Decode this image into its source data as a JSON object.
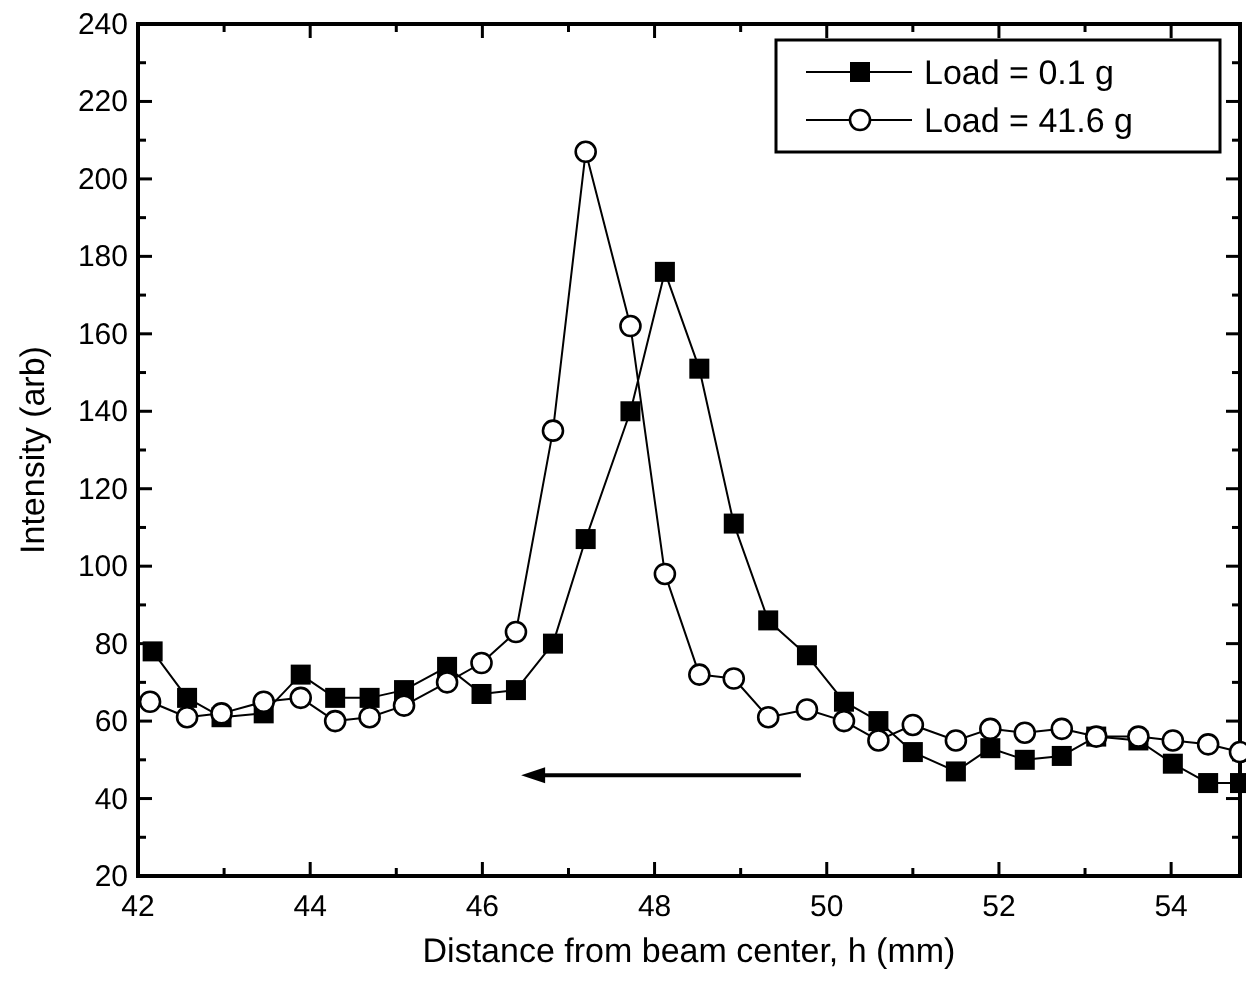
{
  "chart_data": {
    "type": "line",
    "xlabel": "Distance from beam center, h (mm)",
    "ylabel": "Intensity (arb)",
    "xlim": [
      42,
      54.8
    ],
    "ylim": [
      20,
      240
    ],
    "xticks": [
      42,
      {
        "value": 43,
        "label": null
      },
      44,
      {
        "value": 45,
        "label": null
      },
      46,
      {
        "value": 47,
        "label": null
      },
      48,
      {
        "value": 49,
        "label": null
      },
      50,
      {
        "value": 51,
        "label": null
      },
      52,
      {
        "value": 53,
        "label": null
      },
      54
    ],
    "yticks": [
      20,
      {
        "value": 30,
        "label": null
      },
      40,
      {
        "value": 50,
        "label": null
      },
      60,
      {
        "value": 70,
        "label": null
      },
      80,
      {
        "value": 90,
        "label": null
      },
      100,
      {
        "value": 110,
        "label": null
      },
      120,
      {
        "value": 130,
        "label": null
      },
      140,
      {
        "value": 150,
        "label": null
      },
      160,
      {
        "value": 170,
        "label": null
      },
      180,
      {
        "value": 190,
        "label": null
      },
      200,
      {
        "value": 210,
        "label": null
      },
      220,
      {
        "value": 230,
        "label": null
      },
      240
    ],
    "legend": "top right",
    "grid": false,
    "line_style": "solid",
    "series": [
      {
        "name": "Load = 0.1 g",
        "color": "#000000",
        "marker": "square",
        "x": [
          42.17,
          42.57,
          42.97,
          43.46,
          43.89,
          44.29,
          44.69,
          45.09,
          45.59,
          45.99,
          46.39,
          46.82,
          47.2,
          47.72,
          48.12,
          48.52,
          48.92,
          49.32,
          49.77,
          50.2,
          50.6,
          51,
          51.5,
          51.9,
          52.3,
          52.73,
          53.13,
          53.62,
          54.02,
          54.43,
          54.8
        ],
        "values": [
          78,
          66,
          61,
          62,
          72,
          66,
          66,
          68,
          74,
          67,
          68,
          80,
          107,
          140,
          176,
          151,
          111,
          86,
          77,
          65,
          60,
          52,
          47,
          53,
          50,
          51,
          56,
          55,
          49,
          44,
          44
        ]
      },
      {
        "name": "Load = 41.6 g",
        "color": "#000000",
        "marker": "circle",
        "x": [
          42.14,
          42.57,
          42.97,
          43.46,
          43.89,
          44.29,
          44.69,
          45.09,
          45.59,
          45.99,
          46.39,
          46.82,
          47.2,
          47.72,
          48.12,
          48.52,
          48.92,
          49.32,
          49.77,
          50.2,
          50.6,
          51,
          51.5,
          51.9,
          52.3,
          52.73,
          53.13,
          53.62,
          54.02,
          54.43,
          54.8
        ],
        "values": [
          65,
          61,
          62,
          65,
          66,
          60,
          61,
          64,
          70,
          75,
          83,
          135,
          207,
          162,
          98,
          72,
          71,
          61,
          63,
          60,
          55,
          59,
          55,
          58,
          57,
          58,
          56,
          56,
          55,
          54,
          52
        ]
      }
    ]
  }
}
